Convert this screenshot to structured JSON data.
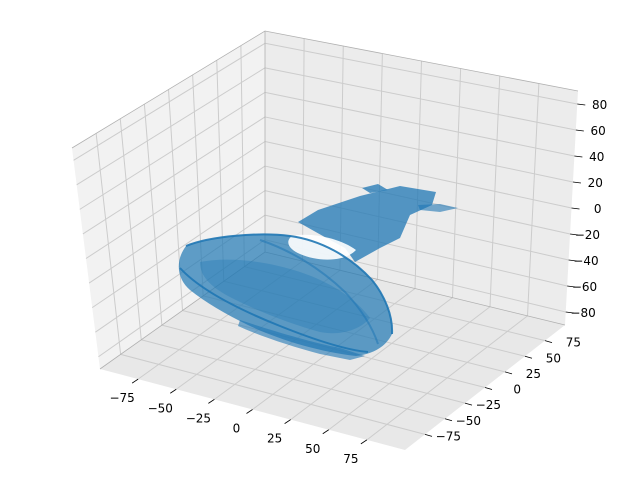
{
  "chart_data": {
    "type": "surface3d",
    "title": "",
    "xlabel": "",
    "ylabel": "",
    "zlabel": "",
    "xlim": [
      -100,
      100
    ],
    "ylim": [
      -100,
      100
    ],
    "zlim": [
      -90,
      90
    ],
    "xticks": [
      "−75",
      "−50",
      "−25",
      "0",
      "25",
      "50",
      "75"
    ],
    "yticks": [
      "−75",
      "−50",
      "−25",
      "0",
      "25",
      "50",
      "75"
    ],
    "zticks": [
      "−80",
      "−60",
      "−40",
      "−20",
      "0",
      "20",
      "40",
      "60",
      "80"
    ],
    "grid": true,
    "surface_color": "#1f77b4",
    "pane_colors": [
      "#f2f2f2",
      "#e6e6e6",
      "#ebebeb"
    ]
  }
}
